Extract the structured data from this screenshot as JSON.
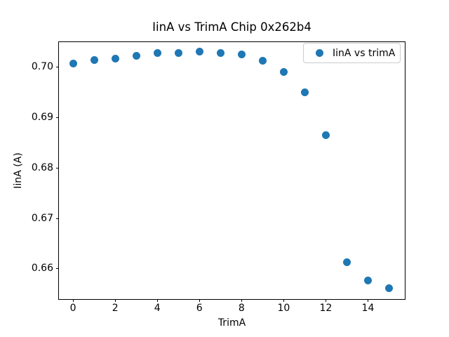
{
  "colors": {
    "marker": "#1f77b4",
    "spine": "#000000",
    "legend_border": "#cccccc",
    "background": "#ffffff",
    "text": "#000000"
  },
  "chart_data": {
    "type": "scatter",
    "title": "IinA vs TrimA Chip 0x262b4",
    "xlabel": "TrimA",
    "ylabel": "IinA (A)",
    "legend": [
      "IinA vs trimA"
    ],
    "legend_position": "upper right",
    "grid": false,
    "x": [
      0,
      1,
      2,
      3,
      4,
      5,
      6,
      7,
      8,
      9,
      10,
      11,
      12,
      13,
      14,
      15
    ],
    "y": [
      0.7007,
      0.7014,
      0.7017,
      0.7023,
      0.7028,
      0.7029,
      0.7031,
      0.7029,
      0.7026,
      0.7013,
      0.6991,
      0.6951,
      0.6866,
      0.6613,
      0.6577,
      0.6562
    ],
    "xlim": [
      -0.67,
      15.75
    ],
    "ylim": [
      0.654,
      0.705
    ],
    "xticks": [
      0,
      2,
      4,
      6,
      8,
      10,
      12,
      14
    ],
    "yticks": [
      0.66,
      0.67,
      0.68,
      0.69,
      0.7
    ],
    "ytick_decimals": 2
  }
}
